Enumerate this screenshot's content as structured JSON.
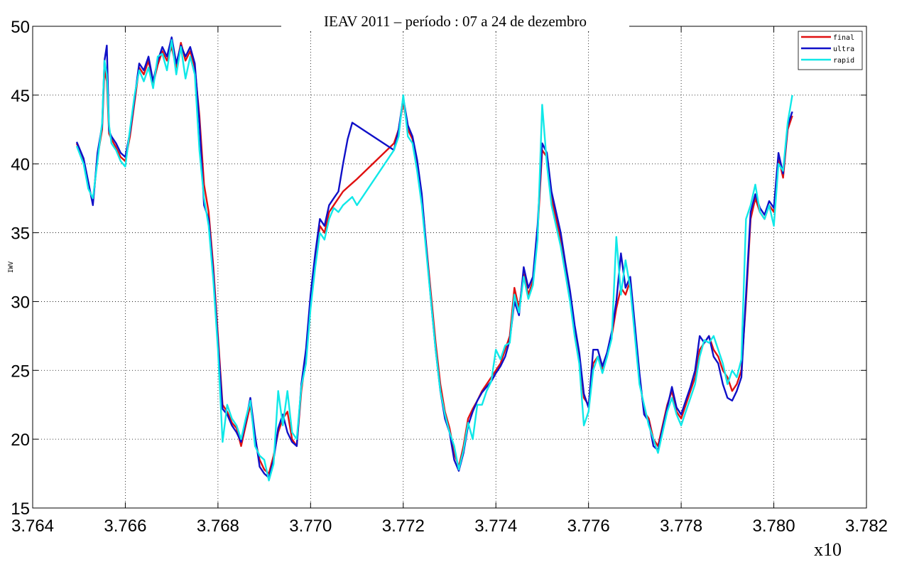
{
  "chart_data": {
    "type": "line",
    "title": "IEAV 2011 – período : 07 a 24 de dezembro",
    "xlabel": "",
    "ylabel": "IWV",
    "x_multiplier_label": "x10",
    "xlim": [
      3.764,
      3.782
    ],
    "ylim": [
      15,
      50
    ],
    "xticks": [
      "3.764",
      "3.766",
      "3.768",
      "3.770",
      "3.772",
      "3.774",
      "3.776",
      "3.778",
      "3.780",
      "3.782"
    ],
    "yticks": [
      "15",
      "20",
      "25",
      "30",
      "35",
      "40",
      "45",
      "50"
    ],
    "grid": true,
    "legend_position": "top-right",
    "colors": {
      "final": "#e01010",
      "ultra": "#1010c8",
      "rapid": "#10e8e8"
    },
    "series": [
      {
        "name": "final",
        "x": [
          3.76495,
          3.7651,
          3.7652,
          3.7653,
          3.7654,
          3.7655,
          3.76555,
          3.7656,
          3.76565,
          3.7657,
          3.7658,
          3.7659,
          3.766,
          3.7661,
          3.7662,
          3.7663,
          3.7664,
          3.7665,
          3.7666,
          3.7667,
          3.7668,
          3.7669,
          3.767,
          3.7671,
          3.7672,
          3.7673,
          3.7674,
          3.7675,
          3.7676,
          3.7677,
          3.7678,
          3.7679,
          3.768,
          3.7681,
          3.7682,
          3.7683,
          3.7684,
          3.7685,
          3.7686,
          3.7687,
          3.7688,
          3.7689,
          3.769,
          3.7691,
          3.7692,
          3.7693,
          3.7694,
          3.7695,
          3.7696,
          3.7697,
          3.7698,
          3.7699,
          3.77,
          3.7701,
          3.7702,
          3.7703,
          3.7704,
          3.7705,
          3.7706,
          3.7707,
          3.7708,
          3.7709,
          3.771,
          3.7718,
          3.7719,
          3.772,
          3.7721,
          3.7722,
          3.7723,
          3.7724,
          3.7725,
          3.7726,
          3.7727,
          3.7728,
          3.7729,
          3.773,
          3.7731,
          3.7732,
          3.7733,
          3.7734,
          3.7735,
          3.7736,
          3.7737,
          3.7738,
          3.7739,
          3.774,
          3.7741,
          3.7742,
          3.7743,
          3.7744,
          3.7745,
          3.7746,
          3.7747,
          3.7748,
          3.7749,
          3.775,
          3.7751,
          3.7752,
          3.7753,
          3.7754,
          3.7755,
          3.7756,
          3.7757,
          3.7758,
          3.7759,
          3.776,
          3.7761,
          3.7762,
          3.7763,
          3.7764,
          3.7765,
          3.7766,
          3.7767,
          3.7768,
          3.7769,
          3.777,
          3.7771,
          3.7772,
          3.7773,
          3.7774,
          3.7775,
          3.7776,
          3.7777,
          3.7778,
          3.7779,
          3.778,
          3.7781,
          3.7782,
          3.7783,
          3.7784,
          3.7785,
          3.7786,
          3.7787,
          3.7788,
          3.7789,
          3.779,
          3.7791,
          3.7792,
          3.7793,
          3.7794,
          3.7795,
          3.7796,
          3.7797,
          3.7798,
          3.7799,
          3.78,
          3.7801,
          3.7802,
          3.7803,
          3.7804
        ],
        "y": [
          41.5,
          40.2,
          38.5,
          37.2,
          40.5,
          42.5,
          46.8,
          46.0,
          42.2,
          41.8,
          41.2,
          40.5,
          40.2,
          42.0,
          44.5,
          47.0,
          46.5,
          47.5,
          45.8,
          47.2,
          48.2,
          47.5,
          48.5,
          47.0,
          48.8,
          47.5,
          48.2,
          47.0,
          43.5,
          38.5,
          36.5,
          32.5,
          27.5,
          22.5,
          22.0,
          21.2,
          20.8,
          19.5,
          21.0,
          22.5,
          20.0,
          18.5,
          17.8,
          17.5,
          18.8,
          20.5,
          21.5,
          22.0,
          20.0,
          19.5,
          23.5,
          26.0,
          30.0,
          33.0,
          35.5,
          35.0,
          36.5,
          37.0,
          37.5,
          38.0,
          38.3,
          38.6,
          38.9,
          41.5,
          42.5,
          44.5,
          42.5,
          41.8,
          40.0,
          37.5,
          34.0,
          30.5,
          27.0,
          24.0,
          22.0,
          20.8,
          19.0,
          18.0,
          19.5,
          21.5,
          22.2,
          22.8,
          23.5,
          24.0,
          24.5,
          25.0,
          25.5,
          26.5,
          27.5,
          31.0,
          29.5,
          32.0,
          30.5,
          31.5,
          35.0,
          41.0,
          40.5,
          37.5,
          36.0,
          34.5,
          32.5,
          30.5,
          28.0,
          26.0,
          23.0,
          22.5,
          25.5,
          26.0,
          25.0,
          26.0,
          27.5,
          29.5,
          31.0,
          30.5,
          31.5,
          28.0,
          24.5,
          22.0,
          21.5,
          20.0,
          19.5,
          21.0,
          22.5,
          23.5,
          22.0,
          21.5,
          22.5,
          23.5,
          24.5,
          26.5,
          27.0,
          27.5,
          26.5,
          26.0,
          25.0,
          24.5,
          23.5,
          24.0,
          25.0,
          30.0,
          36.0,
          37.5,
          36.5,
          36.0,
          37.0,
          36.5,
          40.5,
          39.0,
          42.5,
          43.5
        ]
      },
      {
        "name": "ultra",
        "x": [
          3.76495,
          3.7651,
          3.7652,
          3.7653,
          3.7654,
          3.7655,
          3.76555,
          3.7656,
          3.76565,
          3.7657,
          3.7658,
          3.7659,
          3.766,
          3.7661,
          3.7662,
          3.7663,
          3.7664,
          3.7665,
          3.7666,
          3.7667,
          3.7668,
          3.7669,
          3.767,
          3.7671,
          3.7672,
          3.7673,
          3.7674,
          3.7675,
          3.7676,
          3.7677,
          3.7678,
          3.7679,
          3.768,
          3.7681,
          3.7682,
          3.7683,
          3.7684,
          3.7685,
          3.7686,
          3.7687,
          3.7688,
          3.7689,
          3.769,
          3.7691,
          3.7692,
          3.7693,
          3.7694,
          3.7695,
          3.7696,
          3.7697,
          3.7698,
          3.7699,
          3.77,
          3.7701,
          3.7702,
          3.7703,
          3.7704,
          3.7705,
          3.7706,
          3.7707,
          3.7708,
          3.7709,
          3.7718,
          3.7719,
          3.772,
          3.7721,
          3.7722,
          3.7723,
          3.7724,
          3.7725,
          3.7726,
          3.7727,
          3.7728,
          3.7729,
          3.773,
          3.7731,
          3.7732,
          3.7733,
          3.7734,
          3.7735,
          3.7736,
          3.7737,
          3.7738,
          3.7739,
          3.774,
          3.7741,
          3.7742,
          3.7743,
          3.7744,
          3.7745,
          3.7746,
          3.7747,
          3.7748,
          3.7749,
          3.775,
          3.7751,
          3.7752,
          3.7753,
          3.7754,
          3.7755,
          3.7756,
          3.7757,
          3.7758,
          3.7759,
          3.776,
          3.7761,
          3.7762,
          3.7763,
          3.7764,
          3.7765,
          3.7766,
          3.7767,
          3.7768,
          3.7769,
          3.777,
          3.7771,
          3.7772,
          3.7773,
          3.7774,
          3.7775,
          3.7776,
          3.7777,
          3.7778,
          3.7779,
          3.778,
          3.7781,
          3.7782,
          3.7783,
          3.7784,
          3.7785,
          3.7786,
          3.7787,
          3.7788,
          3.7789,
          3.779,
          3.7791,
          3.7792,
          3.7793,
          3.7794,
          3.7795,
          3.7796,
          3.7797,
          3.7798,
          3.7799,
          3.78,
          3.7801,
          3.7802,
          3.7803,
          3.7804
        ],
        "y": [
          41.6,
          40.4,
          38.7,
          37.0,
          40.8,
          42.8,
          47.5,
          48.6,
          42.4,
          42.0,
          41.5,
          40.8,
          40.5,
          42.3,
          44.8,
          47.3,
          46.8,
          47.8,
          46.0,
          47.5,
          48.5,
          47.8,
          49.2,
          47.3,
          48.6,
          47.8,
          48.5,
          47.3,
          43.0,
          37.0,
          36.0,
          32.0,
          27.0,
          22.2,
          21.8,
          21.0,
          20.5,
          19.8,
          21.3,
          23.0,
          20.3,
          18.0,
          17.5,
          17.2,
          18.5,
          20.8,
          21.8,
          20.5,
          19.8,
          19.5,
          24.0,
          26.5,
          30.5,
          33.5,
          36.0,
          35.5,
          37.0,
          37.5,
          38.0,
          40.0,
          41.8,
          43.0,
          41.0,
          42.5,
          44.8,
          42.8,
          42.0,
          40.3,
          37.8,
          33.8,
          30.0,
          26.5,
          23.5,
          21.5,
          20.5,
          18.5,
          17.7,
          19.0,
          21.0,
          22.0,
          22.8,
          23.4,
          23.8,
          24.2,
          24.8,
          25.3,
          26.0,
          27.2,
          30.0,
          29.0,
          32.5,
          31.0,
          31.8,
          35.5,
          41.5,
          40.8,
          38.0,
          36.5,
          35.0,
          32.8,
          30.8,
          28.3,
          26.3,
          23.3,
          22.3,
          26.5,
          26.5,
          25.3,
          26.3,
          27.8,
          30.0,
          33.5,
          31.0,
          31.8,
          28.3,
          24.8,
          21.8,
          21.3,
          19.5,
          19.2,
          20.8,
          22.3,
          23.8,
          22.3,
          21.8,
          22.8,
          23.8,
          25.0,
          27.5,
          27.0,
          27.5,
          26.0,
          25.5,
          24.0,
          23.0,
          22.8,
          23.5,
          24.5,
          30.5,
          36.5,
          37.8,
          36.8,
          36.3,
          37.3,
          36.8,
          40.8,
          39.3,
          42.8,
          43.8
        ]
      },
      {
        "name": "rapid",
        "x": [
          3.76495,
          3.7651,
          3.7652,
          3.7653,
          3.7654,
          3.7655,
          3.76555,
          3.7656,
          3.76565,
          3.7657,
          3.7658,
          3.7659,
          3.766,
          3.7661,
          3.7662,
          3.7663,
          3.7664,
          3.7665,
          3.7666,
          3.7667,
          3.7668,
          3.7669,
          3.767,
          3.7671,
          3.7672,
          3.7673,
          3.7674,
          3.7675,
          3.7676,
          3.7677,
          3.7678,
          3.7679,
          3.768,
          3.7681,
          3.7682,
          3.7683,
          3.7684,
          3.7685,
          3.7686,
          3.7687,
          3.7688,
          3.7689,
          3.769,
          3.7691,
          3.7692,
          3.7693,
          3.7694,
          3.7695,
          3.7696,
          3.7697,
          3.7698,
          3.7699,
          3.77,
          3.7701,
          3.7702,
          3.7703,
          3.7704,
          3.7705,
          3.7706,
          3.7707,
          3.7708,
          3.7709,
          3.771,
          3.7718,
          3.7719,
          3.772,
          3.7721,
          3.7722,
          3.7723,
          3.7724,
          3.7725,
          3.7726,
          3.7727,
          3.7728,
          3.7729,
          3.773,
          3.7731,
          3.7732,
          3.7733,
          3.7734,
          3.7735,
          3.7736,
          3.7737,
          3.7738,
          3.7739,
          3.774,
          3.7741,
          3.7742,
          3.7743,
          3.7744,
          3.7745,
          3.7746,
          3.7747,
          3.7748,
          3.7749,
          3.775,
          3.7751,
          3.7752,
          3.7753,
          3.7754,
          3.7755,
          3.7756,
          3.7757,
          3.7758,
          3.7759,
          3.776,
          3.7761,
          3.7762,
          3.7763,
          3.7764,
          3.7765,
          3.7766,
          3.7767,
          3.7768,
          3.7769,
          3.777,
          3.7771,
          3.7772,
          3.7773,
          3.7774,
          3.7775,
          3.7776,
          3.7777,
          3.7778,
          3.7779,
          3.778,
          3.7781,
          3.7782,
          3.7783,
          3.7784,
          3.7785,
          3.7786,
          3.7787,
          3.7788,
          3.7789,
          3.779,
          3.7791,
          3.7792,
          3.7793,
          3.7794,
          3.7795,
          3.7796,
          3.7797,
          3.7798,
          3.7799,
          3.78,
          3.7801,
          3.7802,
          3.7803,
          3.7804
        ],
        "y": [
          41.3,
          40.0,
          38.2,
          37.5,
          40.2,
          43.0,
          47.5,
          46.5,
          42.8,
          41.5,
          41.0,
          40.2,
          39.8,
          42.5,
          45.0,
          46.8,
          46.0,
          47.0,
          45.5,
          47.8,
          48.0,
          46.8,
          49.0,
          46.5,
          48.5,
          46.2,
          47.8,
          46.5,
          41.0,
          37.5,
          35.5,
          31.5,
          26.5,
          19.8,
          22.5,
          21.5,
          21.0,
          20.0,
          21.5,
          22.8,
          19.5,
          18.8,
          18.5,
          17.0,
          18.2,
          23.5,
          21.0,
          23.5,
          20.5,
          20.0,
          23.8,
          25.5,
          29.5,
          32.5,
          35.0,
          34.5,
          36.0,
          36.8,
          36.5,
          37.0,
          37.3,
          37.6,
          37.0,
          41.0,
          42.0,
          45.0,
          42.0,
          41.5,
          39.5,
          37.0,
          33.5,
          30.0,
          26.5,
          23.5,
          21.8,
          20.5,
          19.5,
          17.8,
          19.2,
          21.2,
          20.0,
          22.5,
          22.5,
          23.5,
          24.2,
          26.5,
          25.8,
          26.8,
          27.0,
          30.5,
          29.2,
          31.8,
          30.2,
          31.2,
          34.5,
          44.3,
          40.0,
          37.0,
          35.5,
          34.0,
          32.0,
          30.0,
          27.5,
          25.5,
          21.0,
          22.0,
          25.0,
          26.0,
          24.8,
          26.0,
          27.3,
          34.7,
          30.5,
          33.0,
          31.0,
          27.5,
          24.0,
          22.5,
          21.0,
          20.0,
          19.0,
          20.5,
          22.0,
          23.0,
          21.8,
          21.0,
          22.0,
          23.0,
          24.0,
          26.0,
          27.2,
          27.0,
          27.5,
          26.5,
          25.5,
          24.0,
          25.0,
          24.5,
          25.8,
          36.0,
          37.0,
          38.5,
          36.5,
          36.0,
          37.0,
          35.5,
          40.0,
          39.5,
          43.0,
          45.0
        ]
      }
    ]
  }
}
